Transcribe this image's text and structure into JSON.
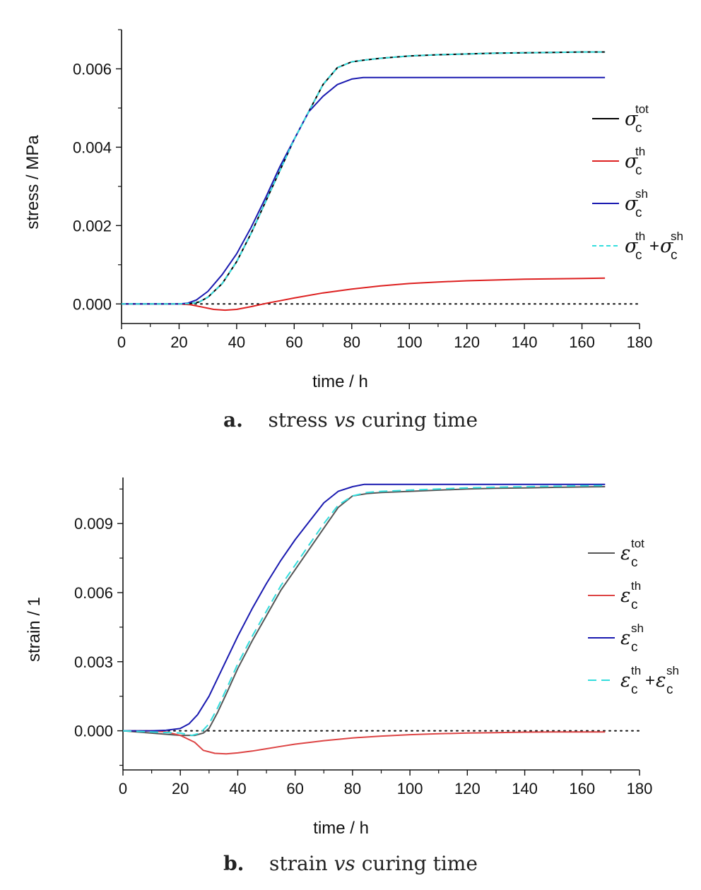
{
  "chart_data": [
    {
      "type": "line",
      "panel_letter": "a.",
      "caption_pre": "stress",
      "caption_vs": "vs",
      "caption_post": "curing time",
      "xlabel": "time / h",
      "ylabel": "stress / MPa",
      "xlim": [
        0,
        180
      ],
      "ylim": [
        -0.0005,
        0.007
      ],
      "xticks": [
        0,
        20,
        40,
        60,
        80,
        100,
        120,
        140,
        160,
        180
      ],
      "xtick_labels": [
        "0",
        "20",
        "40",
        "60",
        "80",
        "100",
        "120",
        "140",
        "160",
        "180"
      ],
      "yticks": [
        0,
        0.002,
        0.004,
        0.006
      ],
      "ytick_labels": [
        "0.000",
        "0.002",
        "0.004",
        "0.006"
      ],
      "zero_line": true,
      "legend_position": "right",
      "series": [
        {
          "key": "tot",
          "symbol": "σ",
          "sub": "c",
          "sup": "tot",
          "color": "#000000",
          "dash": "",
          "x": [
            0,
            20,
            24,
            27,
            30,
            35,
            40,
            45,
            50,
            55,
            60,
            65,
            70,
            75,
            80,
            84,
            90,
            100,
            110,
            120,
            130,
            140,
            150,
            160,
            168
          ],
          "y": [
            0,
            0,
            1e-05,
            5e-05,
            0.00017,
            0.00052,
            0.00108,
            0.0018,
            0.0026,
            0.0034,
            0.0042,
            0.0049,
            0.0056,
            0.00603,
            0.00618,
            0.00622,
            0.00627,
            0.00633,
            0.00636,
            0.00638,
            0.0064,
            0.00641,
            0.00642,
            0.00643,
            0.00643
          ]
        },
        {
          "key": "th",
          "symbol": "σ",
          "sub": "c",
          "sup": "th",
          "color": "#dd2020",
          "dash": "",
          "x": [
            0,
            20,
            24,
            28,
            32,
            36,
            40,
            45,
            50,
            55,
            60,
            70,
            80,
            90,
            100,
            110,
            120,
            130,
            140,
            150,
            160,
            168
          ],
          "y": [
            0,
            0,
            -2e-05,
            -8e-05,
            -0.00014,
            -0.00016,
            -0.00014,
            -7e-05,
            1e-05,
            8e-05,
            0.00015,
            0.00028,
            0.00038,
            0.00046,
            0.00052,
            0.00056,
            0.00059,
            0.00061,
            0.00063,
            0.00064,
            0.00065,
            0.00066
          ]
        },
        {
          "key": "sh",
          "symbol": "σ",
          "sub": "c",
          "sup": "sh",
          "color": "#1a1ab0",
          "dash": "",
          "x": [
            0,
            20,
            23,
            26,
            30,
            35,
            40,
            45,
            50,
            55,
            60,
            65,
            70,
            75,
            80,
            84,
            100,
            120,
            140,
            160,
            168
          ],
          "y": [
            0,
            0,
            2e-05,
            0.0001,
            0.00032,
            0.00075,
            0.00128,
            0.00195,
            0.0027,
            0.0035,
            0.0042,
            0.0049,
            0.0053,
            0.0056,
            0.00574,
            0.00578,
            0.00578,
            0.00578,
            0.00578,
            0.00578,
            0.00578
          ]
        },
        {
          "key": "thsh",
          "symbol": "σ",
          "sub": "c",
          "sup": "th",
          "symbol2": "σ",
          "sub2": "c",
          "sup2": "sh",
          "color": "#33dddd",
          "dash": "6,4",
          "x": [
            0,
            20,
            24,
            27,
            30,
            35,
            40,
            45,
            50,
            55,
            60,
            65,
            70,
            75,
            80,
            84,
            90,
            100,
            110,
            120,
            130,
            140,
            150,
            160,
            168
          ],
          "y": [
            0,
            0,
            1e-05,
            5e-05,
            0.00017,
            0.00052,
            0.00108,
            0.0018,
            0.0026,
            0.0034,
            0.0042,
            0.0049,
            0.0056,
            0.00603,
            0.00618,
            0.00622,
            0.00627,
            0.00633,
            0.00636,
            0.00638,
            0.0064,
            0.00641,
            0.00642,
            0.00643,
            0.00643
          ]
        }
      ]
    },
    {
      "type": "line",
      "panel_letter": "b.",
      "caption_pre": "strain",
      "caption_vs": "vs",
      "caption_post": "curing time",
      "xlabel": "time / h",
      "ylabel": "strain / 1",
      "xlim": [
        0,
        180
      ],
      "ylim": [
        -0.0017,
        0.011
      ],
      "xticks": [
        0,
        20,
        40,
        60,
        80,
        100,
        120,
        140,
        160,
        180
      ],
      "xtick_labels": [
        "0",
        "20",
        "40",
        "60",
        "80",
        "100",
        "120",
        "140",
        "160",
        "180"
      ],
      "yticks": [
        0,
        0.003,
        0.006,
        0.009
      ],
      "ytick_labels": [
        "0.000",
        "0.003",
        "0.006",
        "0.009"
      ],
      "zero_line": true,
      "legend_position": "right",
      "series": [
        {
          "key": "tot",
          "symbol": "ε",
          "sub": "c",
          "sup": "tot",
          "color": "#555555",
          "dash": "",
          "x": [
            0,
            20,
            25,
            28,
            30,
            33,
            36,
            40,
            45,
            50,
            55,
            60,
            65,
            70,
            75,
            80,
            85,
            90,
            100,
            110,
            120,
            130,
            140,
            150,
            160,
            168
          ],
          "y": [
            0,
            -0.0002,
            -0.0002,
            -0.0001,
            0.0001,
            0.0008,
            0.0016,
            0.0027,
            0.0039,
            0.005,
            0.0061,
            0.007,
            0.0079,
            0.0088,
            0.0097,
            0.0102,
            0.0103,
            0.01035,
            0.0104,
            0.01045,
            0.0105,
            0.01053,
            0.01055,
            0.01057,
            0.01059,
            0.0106
          ]
        },
        {
          "key": "th",
          "symbol": "ε",
          "sub": "c",
          "sup": "th",
          "color": "#dd4444",
          "dash": "",
          "x": [
            0,
            10,
            15,
            20,
            25,
            28,
            32,
            36,
            40,
            45,
            50,
            55,
            60,
            70,
            80,
            90,
            100,
            110,
            120,
            130,
            140,
            150,
            160,
            168
          ],
          "y": [
            0,
            0,
            -5e-05,
            -0.0002,
            -0.0005,
            -0.00085,
            -0.00098,
            -0.001,
            -0.00096,
            -0.00088,
            -0.00078,
            -0.00068,
            -0.00058,
            -0.00043,
            -0.00031,
            -0.00023,
            -0.00017,
            -0.00013,
            -0.0001,
            -8e-05,
            -6e-05,
            -5e-05,
            -5e-05,
            -5e-05
          ]
        },
        {
          "key": "sh",
          "symbol": "ε",
          "sub": "c",
          "sup": "sh",
          "color": "#1a1ab0",
          "dash": "",
          "x": [
            0,
            10,
            15,
            20,
            23,
            26,
            30,
            35,
            40,
            45,
            50,
            55,
            60,
            65,
            70,
            75,
            80,
            84,
            100,
            120,
            140,
            160,
            168
          ],
          "y": [
            0,
            0,
            2e-05,
            0.0001,
            0.0003,
            0.0007,
            0.0015,
            0.0028,
            0.0041,
            0.0053,
            0.0064,
            0.0074,
            0.0083,
            0.0091,
            0.0099,
            0.0104,
            0.0106,
            0.0107,
            0.0107,
            0.0107,
            0.0107,
            0.0107,
            0.0107
          ]
        },
        {
          "key": "thsh",
          "symbol": "ε",
          "sub": "c",
          "sup": "th",
          "symbol2": "ε",
          "sub2": "c",
          "sup2": "sh",
          "color": "#33dddd",
          "dash": "12,7",
          "x": [
            0,
            20,
            24,
            27,
            30,
            33,
            36,
            40,
            45,
            50,
            55,
            60,
            65,
            70,
            75,
            80,
            85,
            90,
            100,
            110,
            120,
            130,
            140,
            150,
            160,
            168
          ],
          "y": [
            0,
            -0.0001,
            -0.0002,
            -0.0001,
            0.0003,
            0.001,
            0.0018,
            0.0029,
            0.0041,
            0.0052,
            0.0063,
            0.0072,
            0.0081,
            0.009,
            0.0098,
            0.0102,
            0.01035,
            0.0104,
            0.01045,
            0.0105,
            0.01055,
            0.01058,
            0.0106,
            0.01062,
            0.01064,
            0.01065
          ]
        }
      ]
    }
  ]
}
